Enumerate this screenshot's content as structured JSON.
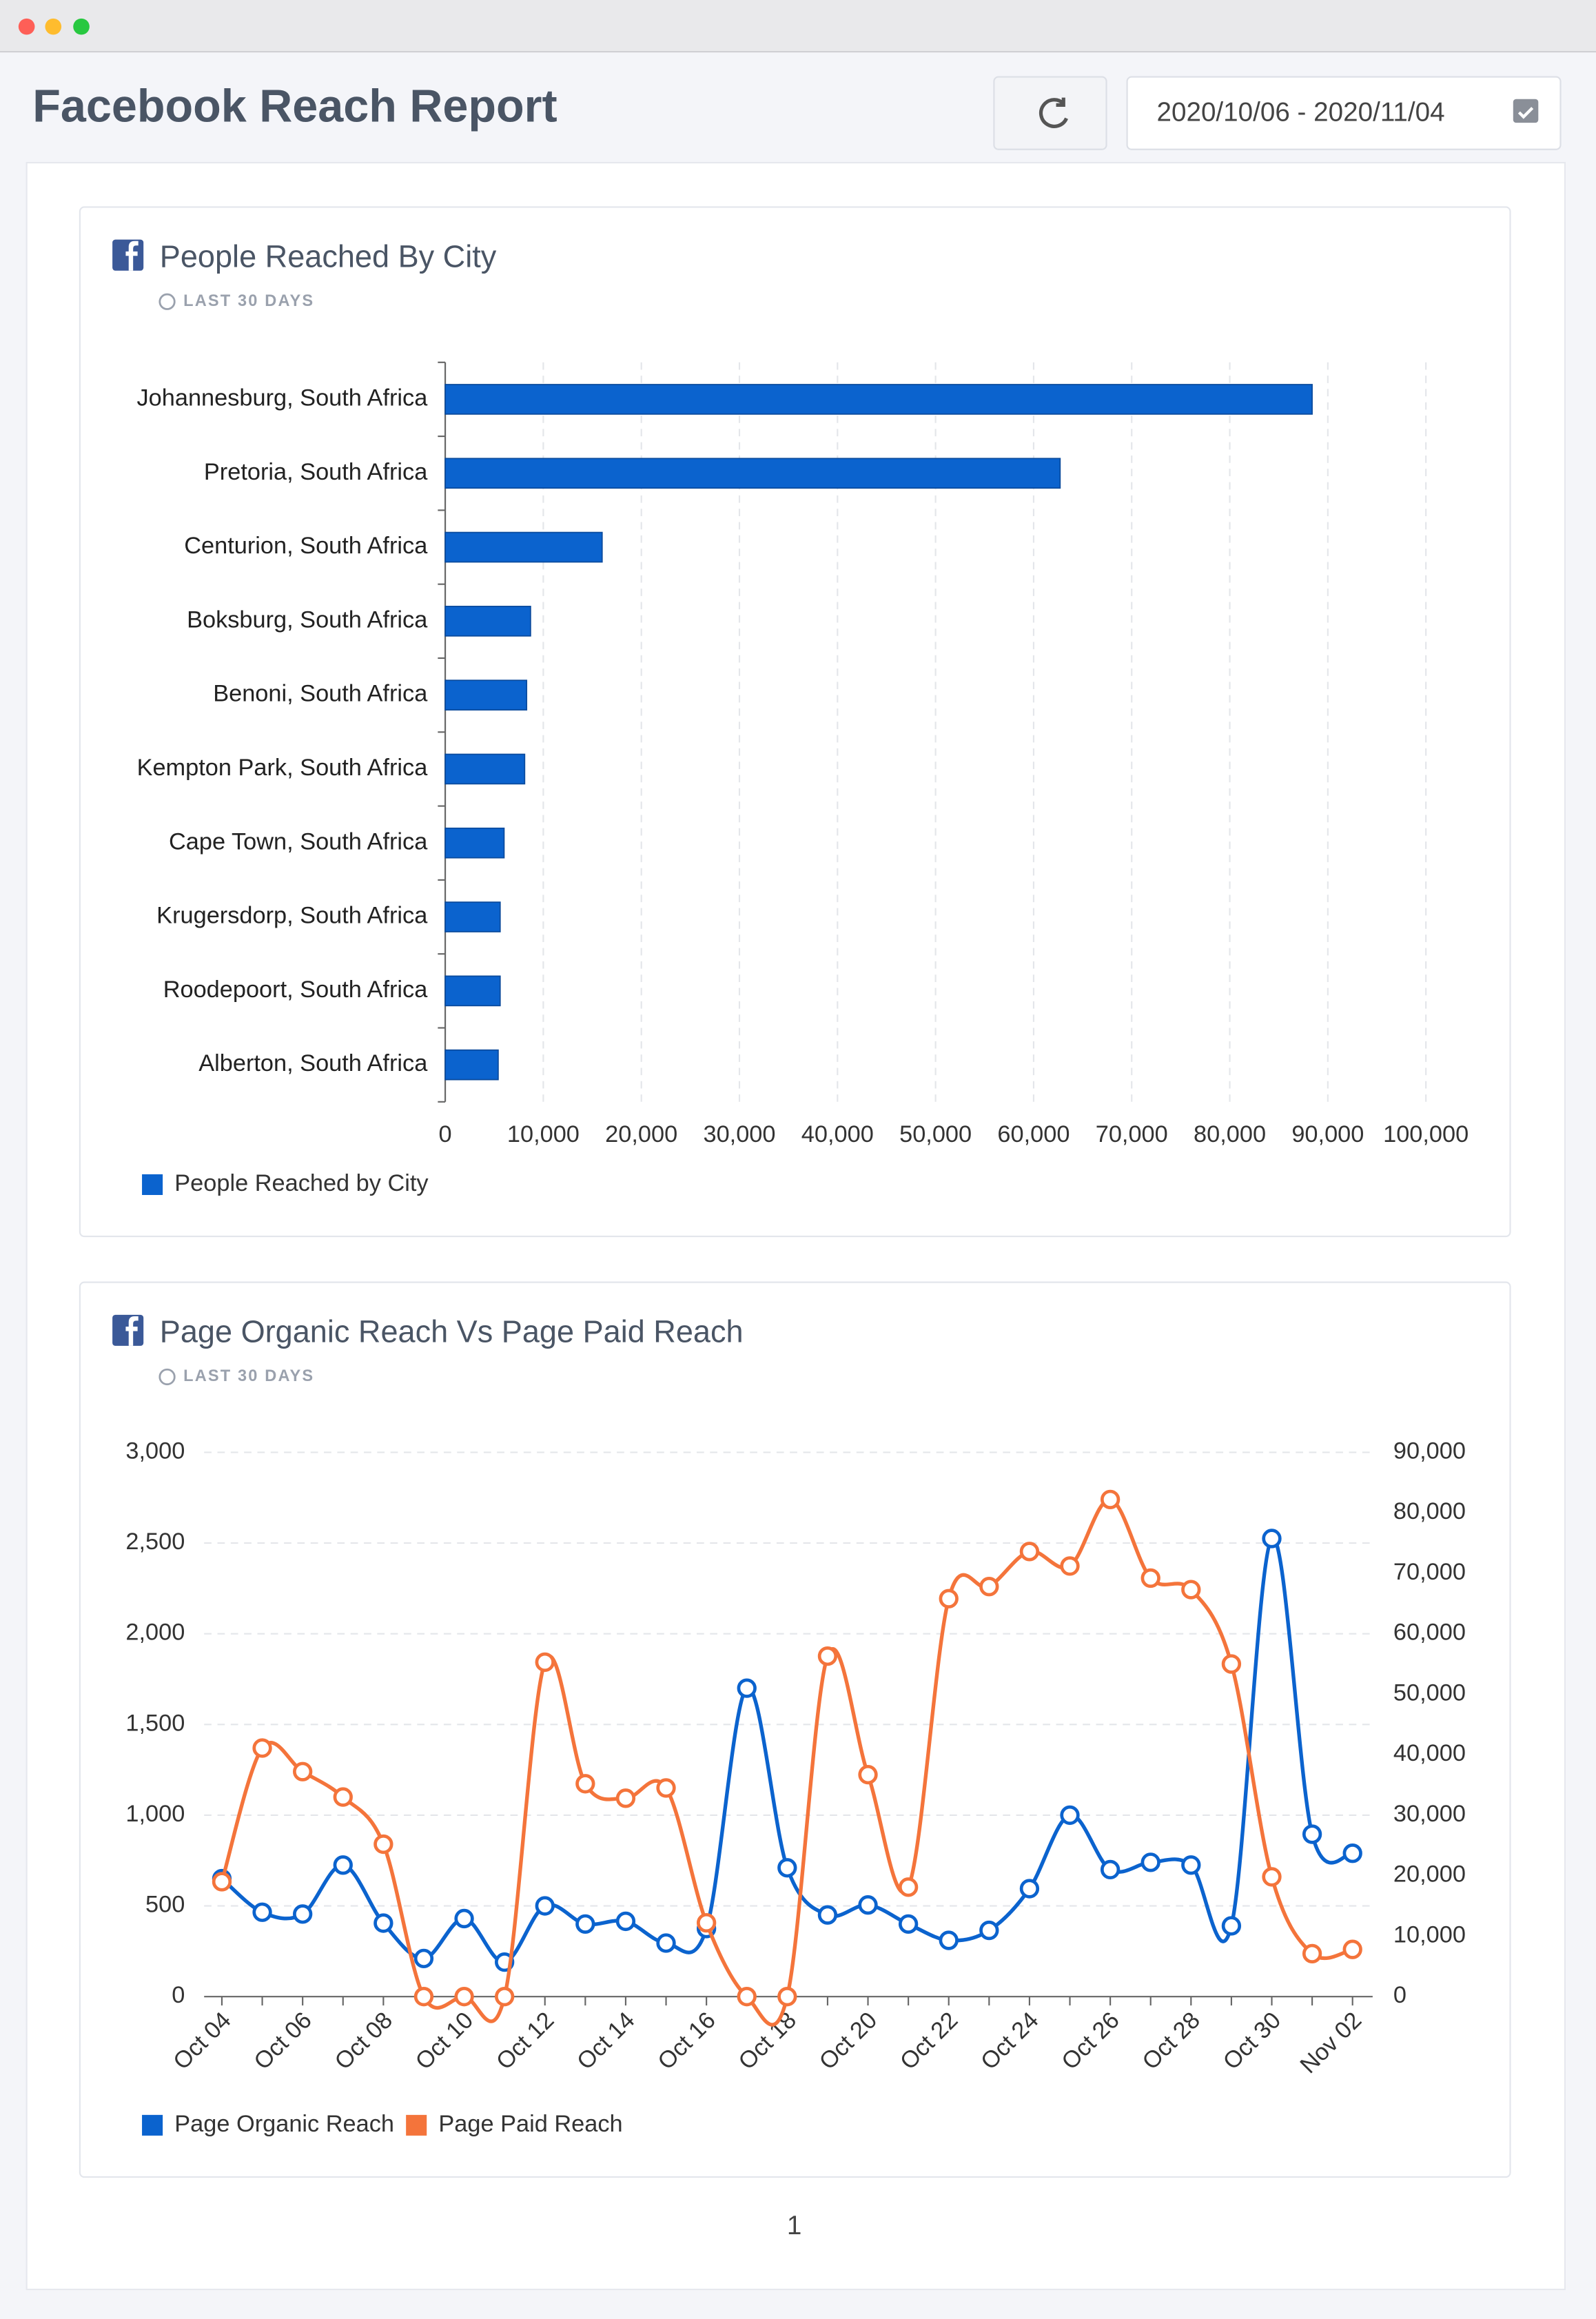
{
  "header": {
    "title": "Facebook Reach Report",
    "date_range": "2020/10/06 - 2020/11/04"
  },
  "chart_data": [
    {
      "type": "bar",
      "orientation": "horizontal",
      "title": "People Reached By City",
      "subtitle": "LAST 30 DAYS",
      "categories": [
        "Johannesburg, South Africa",
        "Pretoria, South Africa",
        "Centurion, South Africa",
        "Boksburg, South Africa",
        "Benoni, South Africa",
        "Kempton Park, South Africa",
        "Cape Town, South Africa",
        "Krugersdorp, South Africa",
        "Roodepoort, South Africa",
        "Alberton, South Africa"
      ],
      "series": [
        {
          "name": "People Reached by City",
          "color": "#0b63ce",
          "values": [
            88400,
            62700,
            16000,
            8700,
            8300,
            8100,
            6000,
            5600,
            5600,
            5400
          ]
        }
      ],
      "xlim": [
        0,
        100000
      ],
      "xticks": [
        0,
        {
          "value": 10000,
          "label": "10,000"
        },
        {
          "value": 20000,
          "label": "20,000"
        },
        {
          "value": 30000,
          "label": "30,000"
        },
        {
          "value": 40000,
          "label": "40,000"
        },
        {
          "value": 50000,
          "label": "50,000"
        },
        {
          "value": 60000,
          "label": "60,000"
        },
        {
          "value": 70000,
          "label": "70,000"
        },
        {
          "value": 80000,
          "label": "80,000"
        },
        {
          "value": 90000,
          "label": "90,000"
        },
        {
          "value": 100000,
          "label": "100,000"
        }
      ],
      "grid": true
    },
    {
      "type": "line",
      "smooth": true,
      "title": "Page Organic Reach Vs Page Paid Reach",
      "subtitle": "LAST 30 DAYS",
      "categories": [
        "Oct 04",
        null,
        "Oct 06",
        null,
        "Oct 08",
        null,
        "Oct 10",
        null,
        "Oct 12",
        null,
        "Oct 14",
        null,
        "Oct 16",
        null,
        "Oct 18",
        null,
        "Oct 20",
        null,
        "Oct 22",
        null,
        "Oct 24",
        null,
        "Oct 26",
        null,
        "Oct 28",
        null,
        "Oct 30",
        null,
        "Nov 02"
      ],
      "series": [
        {
          "name": "Page Organic Reach",
          "color": "#0b63ce",
          "values": [
            650,
            465,
            455,
            725,
            405,
            210,
            430,
            190,
            500,
            400,
            415,
            295,
            375,
            1700,
            710,
            450,
            505,
            400,
            310,
            365,
            595,
            1000,
            700,
            740,
            725,
            390,
            2525,
            895,
            790
          ]
        },
        {
          "name": "Page Paid Reach",
          "color": "#f4743b",
          "axis": "y2",
          "values": [
            19000,
            41100,
            37200,
            33000,
            25200,
            0,
            0,
            0,
            55300,
            35200,
            32800,
            34500,
            12200,
            0,
            0,
            56300,
            36700,
            18100,
            65800,
            67800,
            73600,
            71200,
            82200,
            69200,
            67300,
            55000,
            19800,
            7100,
            7800
          ]
        }
      ],
      "ylim": [
        0,
        3000
      ],
      "yticks": [
        0,
        500,
        {
          "value": 1000,
          "label": "1,000"
        },
        {
          "value": 1500,
          "label": "1,500"
        },
        {
          "value": 2000,
          "label": "2,000"
        },
        {
          "value": 2500,
          "label": "2,500"
        },
        {
          "value": 3000,
          "label": "3,000"
        }
      ],
      "y2lim": [
        0,
        90000
      ],
      "y2ticks": [
        0,
        {
          "value": 10000,
          "label": "10,000"
        },
        {
          "value": 20000,
          "label": "20,000"
        },
        {
          "value": 30000,
          "label": "30,000"
        },
        {
          "value": 40000,
          "label": "40,000"
        },
        {
          "value": 50000,
          "label": "50,000"
        },
        {
          "value": 60000,
          "label": "60,000"
        },
        {
          "value": 70000,
          "label": "70,000"
        },
        {
          "value": 80000,
          "label": "80,000"
        },
        {
          "value": 90000,
          "label": "90,000"
        }
      ],
      "grid": true
    }
  ],
  "page_number": "1"
}
